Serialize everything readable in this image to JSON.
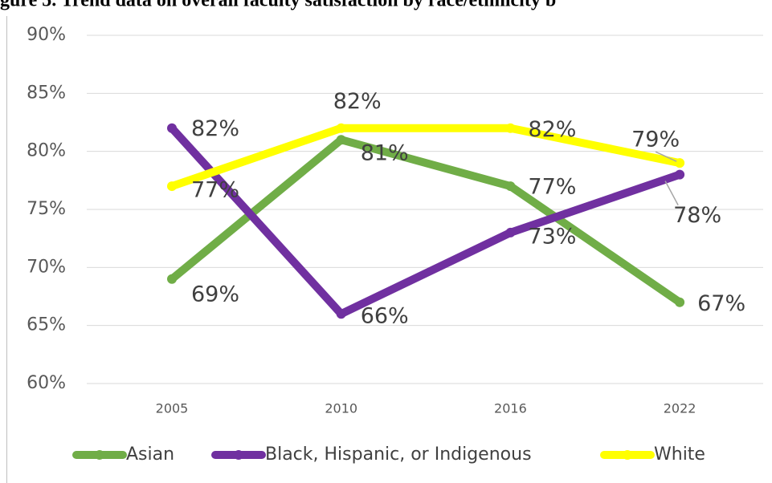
{
  "chart_data": {
    "type": "line",
    "title": "gure 5. Trend data on overall faculty satisfaction by race/ethnicity b",
    "categories": [
      "2005",
      "2010",
      "2016",
      "2022"
    ],
    "series": [
      {
        "name": "Asian",
        "color": "#70ad47",
        "values": [
          69,
          81,
          77,
          67
        ],
        "value_labels": [
          "69%",
          "81%",
          "77%",
          "67%"
        ]
      },
      {
        "name": "Black, Hispanic, or Indigenous",
        "color": "#7030a0",
        "values": [
          82,
          66,
          73,
          78
        ],
        "value_labels": [
          "82%",
          "66%",
          "73%",
          "78%"
        ]
      },
      {
        "name": "White",
        "color": "#ffff00",
        "values": [
          77,
          82,
          82,
          79
        ],
        "value_labels": [
          "77%",
          "82%",
          "82%",
          "79%"
        ]
      }
    ],
    "ylim": [
      60,
      90
    ],
    "yticks": [
      {
        "value": 60,
        "label": "60%"
      },
      {
        "value": 65,
        "label": "65%"
      },
      {
        "value": 70,
        "label": "70%"
      },
      {
        "value": 75,
        "label": "75%"
      },
      {
        "value": 80,
        "label": "80%"
      },
      {
        "value": 85,
        "label": "85%"
      },
      {
        "value": 90,
        "label": "90%"
      }
    ],
    "grid": true,
    "legend": "bottom"
  }
}
